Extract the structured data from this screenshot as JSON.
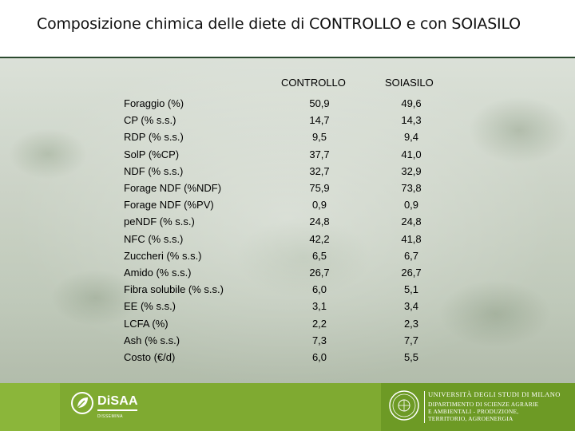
{
  "title": "Composizione chimica delle diete di CONTROLLO e con SOIASILO",
  "columns": [
    "CONTROLLO",
    "SOIASILO"
  ],
  "rows": [
    {
      "label": "Foraggio (%)",
      "controllo": "50,9",
      "soiasilo": "49,6"
    },
    {
      "label": "CP (% s.s.)",
      "controllo": "14,7",
      "soiasilo": "14,3"
    },
    {
      "label": "RDP (% s.s.)",
      "controllo": "9,5",
      "soiasilo": "9,4"
    },
    {
      "label": "SolP (%CP)",
      "controllo": "37,7",
      "soiasilo": "41,0"
    },
    {
      "label": "NDF (% s.s.)",
      "controllo": "32,7",
      "soiasilo": "32,9"
    },
    {
      "label": "Forage NDF (%NDF)",
      "controllo": "75,9",
      "soiasilo": "73,8"
    },
    {
      "label": "Forage NDF (%PV)",
      "controllo": "0,9",
      "soiasilo": "0,9"
    },
    {
      "label": "peNDF (% s.s.)",
      "controllo": "24,8",
      "soiasilo": "24,8"
    },
    {
      "label": "NFC (% s.s.)",
      "controllo": "42,2",
      "soiasilo": "41,8"
    },
    {
      "label": "Zuccheri (% s.s.)",
      "controllo": "6,5",
      "soiasilo": "6,7"
    },
    {
      "label": "Amido (% s.s.)",
      "controllo": "26,7",
      "soiasilo": "26,7"
    },
    {
      "label": "Fibra solubile (% s.s.)",
      "controllo": "6,0",
      "soiasilo": "5,1"
    },
    {
      "label": "EE (% s.s.)",
      "controllo": "3,1",
      "soiasilo": "3,4"
    },
    {
      "label": "LCFA (%)",
      "controllo": "2,2",
      "soiasilo": "2,3"
    },
    {
      "label": "Ash (% s.s.)",
      "controllo": "7,3",
      "soiasilo": "7,7"
    },
    {
      "label": "Costo (€/d)",
      "controllo": "6,0",
      "soiasilo": "5,5"
    }
  ],
  "footer": {
    "logo_text": "DiSAA",
    "logo_subtext": "DISSEMINA",
    "university": "UNIVERSITÀ DEGLI STUDI DI MILANO",
    "department_lines": [
      "DIPARTIMENTO DI SCIENZE AGRARIE",
      "E AMBIENTALI - PRODUZIONE,",
      "TERRITORIO, AGROENERGIA"
    ],
    "colors": {
      "green_light": "#8bb63a",
      "green_mid": "#7faa31",
      "green_dark": "#6d9a25"
    }
  }
}
